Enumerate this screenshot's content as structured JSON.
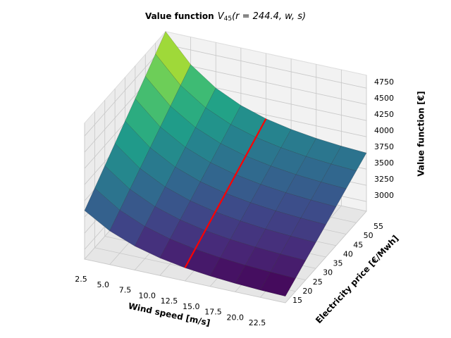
{
  "chart_data": {
    "type": "surface3d",
    "title": "Value function",
    "title_formula": {
      "base": "V",
      "sub": "45",
      "args": "(r = 244.4, w, s)"
    },
    "x_label": "Wind speed [m/s]",
    "y_label": "Electricity price [€/Mwh]",
    "z_label": "Value function [€]",
    "x": [
      2.5,
      5,
      7.5,
      10,
      12.5,
      15,
      17.5,
      20,
      22.5
    ],
    "y": [
      15,
      20,
      25,
      30,
      35,
      40,
      45,
      50,
      55
    ],
    "z": [
      [
        3600,
        3370,
        3219,
        3120,
        3053,
        3010,
        2981,
        2962,
        2950
      ],
      [
        3769,
        3514,
        3348,
        3238,
        3164,
        3117,
        3085,
        3064,
        3050
      ],
      [
        3938,
        3659,
        3476,
        3356,
        3275,
        3223,
        3188,
        3165,
        3150
      ],
      [
        4106,
        3803,
        3604,
        3473,
        3386,
        3330,
        3291,
        3266,
        3250
      ],
      [
        4275,
        3948,
        3733,
        3591,
        3497,
        3436,
        3394,
        3368,
        3350
      ],
      [
        4444,
        4092,
        3862,
        3709,
        3608,
        3542,
        3498,
        3469,
        3450
      ],
      [
        4612,
        4236,
        3990,
        3827,
        3719,
        3649,
        3601,
        3570,
        3550
      ],
      [
        4781,
        4381,
        4118,
        3945,
        3830,
        3755,
        3704,
        3671,
        3650
      ],
      [
        4950,
        4525,
        4247,
        4063,
        3941,
        3862,
        3808,
        3773,
        3750
      ]
    ],
    "colormap": "viridis",
    "line": {
      "x": 12.5,
      "color": "#ff0000"
    },
    "xlim": [
      2.5,
      22.5
    ],
    "ylim": [
      15,
      55
    ],
    "zlim": [
      2850,
      4950
    ],
    "xticks": [
      2.5,
      {
        "value": 5,
        "label": "5.0"
      },
      7.5,
      {
        "value": 10,
        "label": "10.0"
      },
      12.5,
      {
        "value": 15,
        "label": "15.0"
      },
      17.5,
      {
        "value": 20,
        "label": "20.0"
      },
      22.5
    ],
    "yticks": [
      15,
      20,
      25,
      30,
      35,
      40,
      45,
      50,
      55
    ],
    "zticks": [
      3000,
      3250,
      3500,
      3750,
      4000,
      4250,
      4500,
      4750
    ],
    "grid": true
  }
}
